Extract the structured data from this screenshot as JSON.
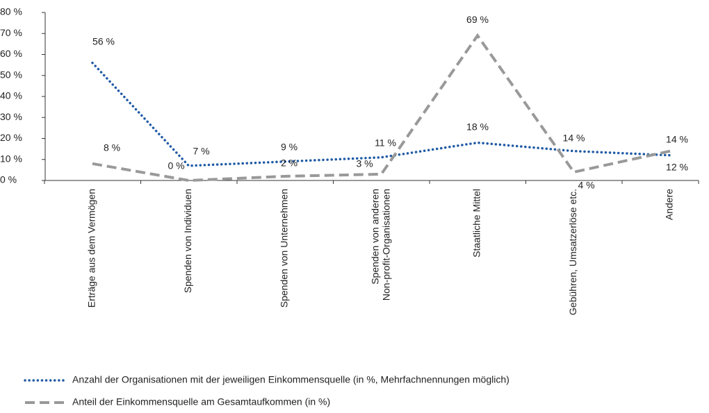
{
  "chart_data": {
    "type": "line",
    "categories": [
      "Erträge aus dem Vermögen",
      "Spenden von Individuen",
      "Spenden von Unternehmen",
      "Spenden von anderen\nNon-profit-Organisationen",
      "Staatliche Mittel",
      "Gebühren, Umsatzerlöse etc.",
      "Andere"
    ],
    "series": [
      {
        "name": "Anzahl der Organisationen mit der jeweiligen Einkommensquelle (in %, Mehrfachnennungen möglich)",
        "color": "#1f5aa6",
        "style": "dotted",
        "values": [
          56,
          7,
          9,
          11,
          18,
          14,
          12
        ],
        "value_labels": [
          "56 %",
          "7 %",
          "9 %",
          "11 %",
          "18 %",
          "14 %",
          "12 %"
        ]
      },
      {
        "name": "Anteil der Einkommensquelle am Gesamtaufkommen (in %)",
        "color": "#999999",
        "style": "dashed",
        "values": [
          8,
          0,
          2,
          3,
          69,
          4,
          14
        ],
        "value_labels": [
          "8 %",
          "0 %",
          "2 %",
          "3 %",
          "69 %",
          "4 %",
          "14 %"
        ]
      }
    ],
    "ylim": [
      0,
      80
    ],
    "yticks": [
      {
        "value": 0,
        "label": "0 %"
      },
      {
        "value": 10,
        "label": "10 %"
      },
      {
        "value": 20,
        "label": "20 %"
      },
      {
        "value": 30,
        "label": "30 %"
      },
      {
        "value": 40,
        "label": "40 %"
      },
      {
        "value": 50,
        "label": "50 %"
      },
      {
        "value": 60,
        "label": "60 %"
      },
      {
        "value": 70,
        "label": "70 %"
      },
      {
        "value": 80,
        "label": "80 %"
      }
    ],
    "grid": false,
    "legend": "bottom"
  }
}
